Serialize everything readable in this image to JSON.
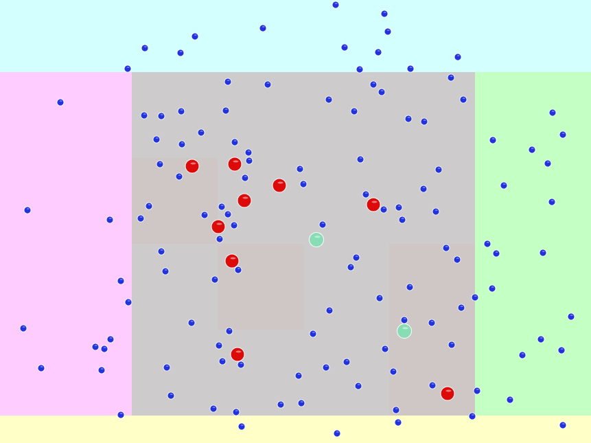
{
  "zones": {
    "top": {
      "color": "#d4ffff"
    },
    "left": {
      "color": "#ffccff"
    },
    "right": {
      "color": "#c4ffc4"
    },
    "bottom": {
      "color": "#ffffc8"
    },
    "center": {
      "color": "#cdcbcb",
      "highlight_color": "#cfc6c6"
    }
  },
  "entities": {
    "blue": {
      "color": "#2233dd",
      "icon": "small-blue-ball"
    },
    "red": {
      "color": "#dd0a0a",
      "icon": "large-red-ball"
    },
    "teal": {
      "color": "#88ddb4",
      "icon": "large-teal-ball"
    }
  }
}
